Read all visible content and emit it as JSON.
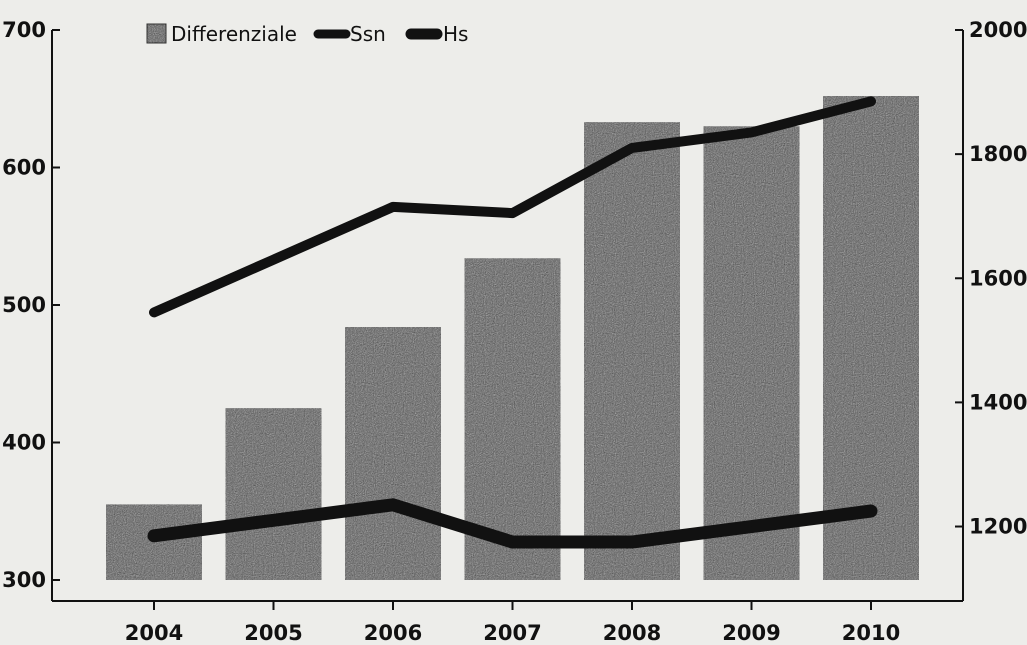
{
  "chart_data": {
    "type": "bar",
    "title": "",
    "xlabel": "",
    "ylabel": "",
    "y2label": "",
    "categories": [
      "2004",
      "2005",
      "2006",
      "2007",
      "2008",
      "2009",
      "2010"
    ],
    "ylim": [
      300,
      700
    ],
    "y2lim": [
      1080,
      2000
    ],
    "y_ticks": [
      "300",
      "400",
      "500",
      "600",
      "700"
    ],
    "y2_ticks": [
      "1200",
      "1400",
      "1600",
      "1800",
      "2000"
    ],
    "legend_position": "top-left",
    "grid": false,
    "series": [
      {
        "name": "Differenziale",
        "type": "bar",
        "axis": "left",
        "values": [
          355,
          425,
          484,
          534,
          633,
          630,
          652
        ],
        "color": "#555555"
      },
      {
        "name": "Ssn",
        "type": "line",
        "axis": "right",
        "values": [
          1545,
          1630,
          1715,
          1705,
          1810,
          1835,
          1885
        ],
        "color": "#111111"
      },
      {
        "name": "Hs",
        "type": "line",
        "axis": "right",
        "values": [
          1185,
          1210,
          1235,
          1175,
          1175,
          1200,
          1225
        ],
        "color": "#111111"
      }
    ]
  }
}
